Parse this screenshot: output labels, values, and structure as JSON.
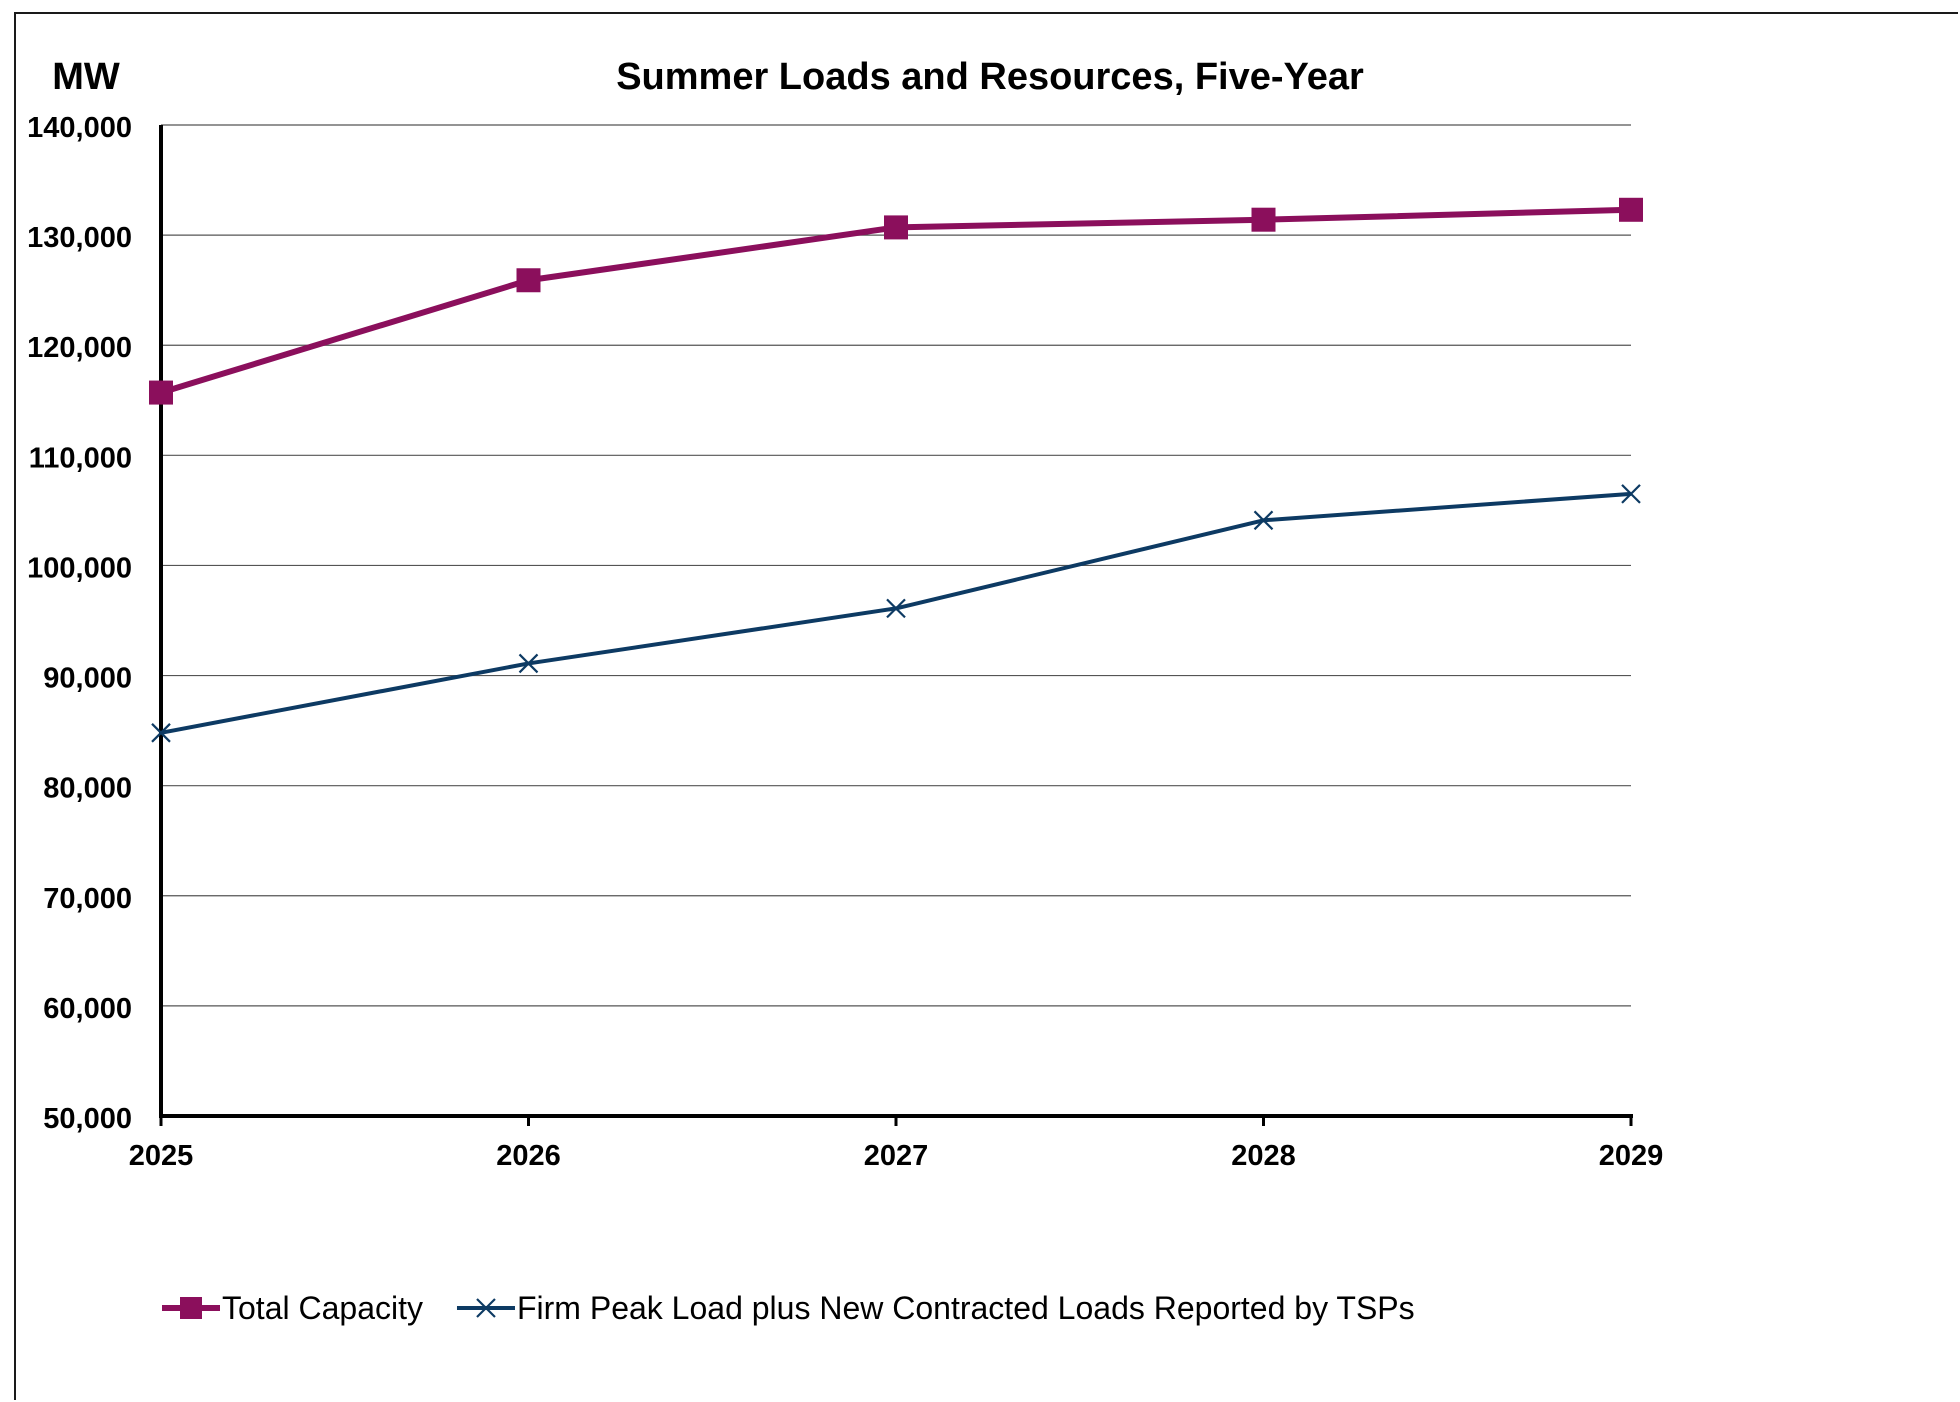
{
  "chart_data": {
    "type": "line",
    "title": "Summer Loads and Resources, Five-Year",
    "ylabel": "MW",
    "xlabel": "",
    "categories": [
      "2025",
      "2026",
      "2027",
      "2028",
      "2029"
    ],
    "ylim": [
      50000,
      140000
    ],
    "yticks": [
      50000,
      60000,
      70000,
      80000,
      90000,
      100000,
      110000,
      120000,
      130000,
      140000
    ],
    "ytick_labels": [
      "50,000",
      "60,000",
      "70,000",
      "80,000",
      "90,000",
      "100,000",
      "110,000",
      "120,000",
      "130,000",
      "140,000"
    ],
    "grid": true,
    "legend_position": "bottom",
    "series": [
      {
        "name": "Total Capacity",
        "color": "#8b0f5c",
        "marker": "square",
        "values": [
          115700,
          125900,
          130700,
          131400,
          132300
        ]
      },
      {
        "name": "Firm Peak Load plus New Contracted Loads Reported by TSPs",
        "color": "#0d3a63",
        "marker": "x",
        "values": [
          84800,
          91100,
          96100,
          104100,
          106500
        ]
      }
    ]
  }
}
